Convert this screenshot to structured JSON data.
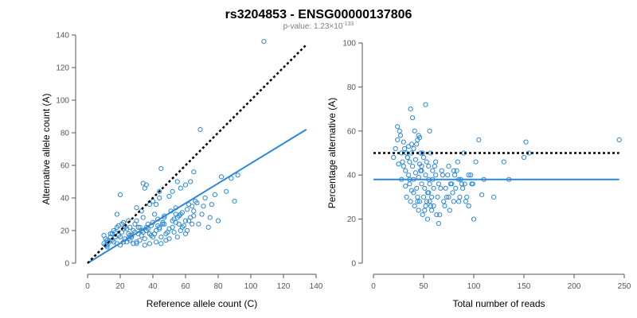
{
  "header": {
    "title": "rs3204853 - ENSG00000137806",
    "pvalue_prefix": "p-value: 1.23×10",
    "pvalue_exponent": "-133"
  },
  "colors": {
    "points": "#2b88d8",
    "fit_line": "#2b88d8",
    "reference_line": "#000000",
    "axis": "#555555"
  },
  "chart_data": [
    {
      "type": "scatter",
      "xlabel": "Reference allele count (C)",
      "ylabel": "Alternative allele count (A)",
      "xlim": [
        0,
        140
      ],
      "ylim": [
        0,
        140
      ],
      "xticks": [
        0,
        20,
        40,
        60,
        80,
        100,
        120,
        140
      ],
      "yticks": [
        0,
        20,
        40,
        60,
        80,
        100,
        120,
        140
      ],
      "x": [
        10,
        11,
        12,
        10,
        13,
        14,
        15,
        12,
        11,
        16,
        18,
        17,
        20,
        22,
        21,
        19,
        24,
        25,
        23,
        26,
        28,
        27,
        29,
        30,
        31,
        32,
        30,
        33,
        35,
        34,
        36,
        38,
        37,
        39,
        40,
        42,
        41,
        43,
        45,
        44,
        46,
        48,
        47,
        50,
        52,
        51,
        53,
        55,
        54,
        56,
        58,
        57,
        60,
        62,
        61,
        63,
        65,
        64,
        66,
        70,
        72,
        74,
        76,
        78,
        80,
        85,
        88,
        90,
        92,
        15,
        18,
        20,
        22,
        25,
        28,
        30,
        32,
        35,
        38,
        40,
        42,
        45,
        48,
        50,
        55,
        60,
        14,
        17,
        19,
        21,
        24,
        26,
        29,
        31,
        33,
        36,
        39,
        41,
        44,
        47,
        49,
        52,
        54,
        57,
        59,
        62,
        65,
        68,
        12,
        16,
        23,
        27,
        34,
        37,
        43,
        46,
        53,
        56,
        58,
        61,
        64,
        67,
        71,
        75,
        20,
        25,
        30,
        35,
        40,
        45,
        50,
        55,
        60,
        65,
        18,
        22,
        26,
        33,
        38,
        44,
        52,
        57,
        63,
        69,
        82,
        108,
        34,
        36,
        42,
        44,
        47,
        54
      ],
      "y": [
        12,
        15,
        14,
        17,
        13,
        16,
        18,
        10,
        11,
        20,
        22,
        19,
        16,
        21,
        24,
        23,
        13,
        18,
        22,
        14,
        20,
        16,
        24,
        12,
        18,
        22,
        26,
        20,
        15,
        28,
        22,
        18,
        24,
        17,
        25,
        20,
        30,
        27,
        16,
        22,
        24,
        18,
        29,
        21,
        26,
        32,
        19,
        28,
        34,
        24,
        22,
        30,
        26,
        36,
        20,
        28,
        32,
        24,
        38,
        30,
        40,
        22,
        36,
        42,
        26,
        44,
        52,
        38,
        54,
        14,
        12,
        11,
        13,
        15,
        12,
        13,
        14,
        11,
        12,
        16,
        13,
        12,
        14,
        15,
        16,
        18,
        18,
        16,
        17,
        19,
        21,
        17,
        19,
        22,
        17,
        20,
        23,
        18,
        21,
        24,
        19,
        22,
        25,
        20,
        23,
        26,
        29,
        24,
        11,
        13,
        15,
        17,
        19,
        21,
        23,
        25,
        27,
        29,
        31,
        33,
        35,
        37,
        35,
        28,
        42,
        26,
        34,
        46,
        38,
        58,
        41,
        50,
        48,
        56,
        30,
        25,
        22,
        32,
        36,
        40,
        44,
        46,
        50,
        82,
        53,
        136,
        49,
        48,
        36,
        44,
        28,
        30
      ],
      "series": [
        {
          "name": "",
          "kind": "fit",
          "x": [
            0,
            134
          ],
          "y": [
            0,
            82
          ]
        },
        {
          "name": "",
          "kind": "identity",
          "x": [
            0,
            134
          ],
          "y": [
            0,
            134
          ]
        }
      ]
    },
    {
      "type": "scatter",
      "xlabel": "Total number of reads",
      "ylabel": "Percentage alternative (A)",
      "xlim": [
        0,
        250
      ],
      "ylim": [
        0,
        100
      ],
      "xticks": [
        0,
        50,
        100,
        150,
        200,
        250
      ],
      "yticks": [
        0,
        20,
        40,
        60,
        80,
        100
      ],
      "x": [
        20,
        22,
        24,
        25,
        26,
        28,
        28,
        30,
        30,
        32,
        32,
        33,
        34,
        35,
        35,
        36,
        36,
        37,
        38,
        38,
        39,
        40,
        40,
        41,
        42,
        42,
        43,
        44,
        44,
        45,
        45,
        46,
        46,
        47,
        48,
        48,
        49,
        50,
        50,
        51,
        52,
        52,
        53,
        54,
        54,
        55,
        55,
        56,
        56,
        57,
        58,
        58,
        59,
        60,
        60,
        62,
        62,
        64,
        65,
        66,
        68,
        70,
        72,
        74,
        75,
        76,
        78,
        80,
        80,
        82,
        84,
        85,
        86,
        88,
        90,
        92,
        95,
        98,
        100,
        102,
        105,
        108,
        110,
        120,
        130,
        135,
        150,
        152,
        155,
        245,
        24,
        27,
        31,
        34,
        37,
        39,
        41,
        43,
        45,
        47,
        49,
        51,
        53,
        55,
        57,
        59,
        61,
        63,
        65,
        67,
        69,
        71,
        73,
        75,
        77,
        79,
        81,
        83,
        85,
        87,
        89,
        91,
        93,
        95,
        97,
        99,
        29,
        33,
        36,
        40,
        44,
        48,
        52,
        56,
        38,
        46
      ],
      "y": [
        48,
        52,
        56,
        45,
        60,
        38,
        50,
        44,
        55,
        35,
        42,
        30,
        48,
        53,
        40,
        36,
        46,
        28,
        50,
        33,
        44,
        38,
        52,
        26,
        41,
        47,
        34,
        30,
        56,
        24,
        39,
        45,
        28,
        50,
        36,
        42,
        22,
        48,
        30,
        34,
        40,
        26,
        46,
        20,
        32,
        38,
        44,
        28,
        36,
        50,
        24,
        30,
        42,
        34,
        26,
        40,
        46,
        30,
        36,
        22,
        42,
        28,
        34,
        40,
        30,
        24,
        36,
        42,
        28,
        34,
        46,
        38,
        30,
        36,
        50,
        28,
        40,
        36,
        20,
        46,
        56,
        31,
        38,
        30,
        46,
        38,
        48,
        55,
        50,
        56,
        62,
        58,
        52,
        48,
        70,
        66,
        60,
        54,
        58,
        42,
        50,
        24,
        28,
        32,
        26,
        38,
        44,
        22,
        18,
        34,
        40,
        26,
        30,
        44,
        36,
        32,
        40,
        42,
        28,
        38,
        34,
        36,
        30,
        26,
        40,
        36,
        46,
        50,
        38,
        32,
        28,
        44,
        72,
        60,
        54,
        57
      ],
      "series": [
        {
          "name": "",
          "kind": "mean",
          "x": [
            0,
            245
          ],
          "y": [
            38,
            38
          ]
        },
        {
          "name": "",
          "kind": "reference",
          "x": [
            0,
            245
          ],
          "y": [
            50,
            50
          ]
        }
      ]
    }
  ]
}
